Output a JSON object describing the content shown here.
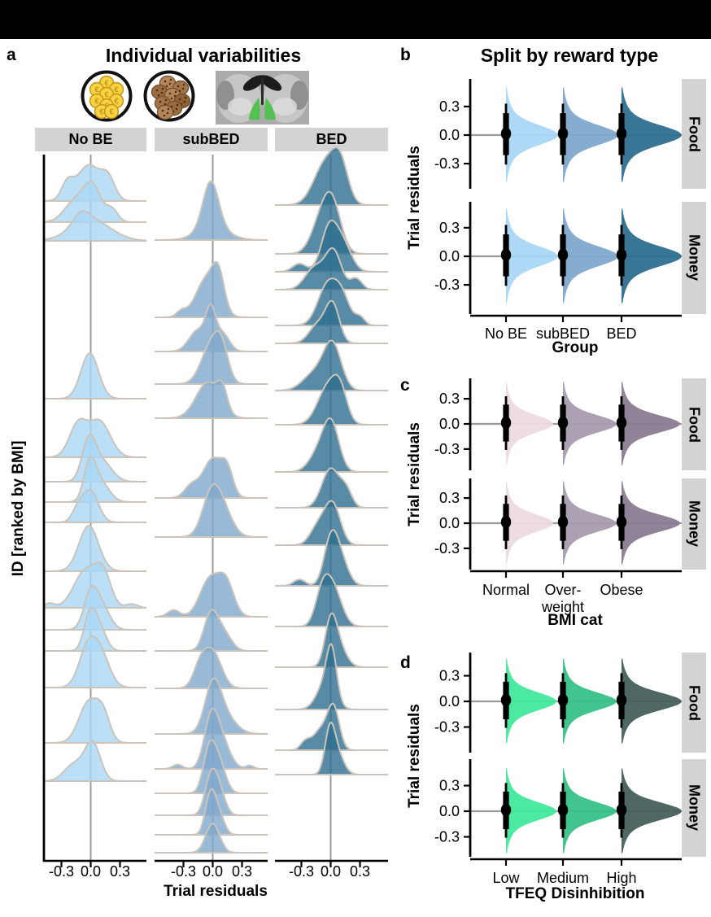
{
  "figure": {
    "panel_letters": {
      "a": "a",
      "b": "b",
      "c": "c",
      "d": "d"
    },
    "titles": {
      "a": "Individual variabilities",
      "b": "Split by reward type"
    },
    "axis": {
      "a_x": "Trial residuals",
      "a_y": "ID [ranked by BMI]",
      "b_x": "Group",
      "c_x": "BMI cat",
      "d_x": "TFEQ Disinhibition",
      "bcd_y": "Trial residuals"
    },
    "facet_strips": {
      "a": [
        "No BE",
        "subBED",
        "BED"
      ],
      "bcd": [
        "Food",
        "Money"
      ]
    },
    "icons": [
      {
        "name": "money-reward-icon",
        "desc": "euro coins in circle"
      },
      {
        "name": "food-reward-icon",
        "desc": "cookies in circle"
      },
      {
        "name": "brain-reward-region-icon",
        "desc": "coronal brain slice with green ventral striatum"
      }
    ]
  },
  "chart_data": [
    {
      "id": "a",
      "type": "ridgeline",
      "title": "Individual variabilities",
      "xlabel": "Trial residuals",
      "ylabel": "ID [ranked by BMI]",
      "facets": [
        "No BE",
        "subBED",
        "BED"
      ],
      "x_ticks": [
        "-0.3",
        "0.0",
        "0.3"
      ],
      "x_tick_values": [
        -0.3,
        0.0,
        0.3
      ],
      "xlim": [
        -0.55,
        0.55
      ],
      "colors": {
        "No BE": "#A9D7F5",
        "subBED": "#7FA9CC",
        "BED": "#2E6E8E"
      },
      "outline": "#CCC4BB",
      "zero_line_color": "#9B9B9B",
      "ridges": {
        "No BE": [
          [
            247,
            44,
            [
              [
                -0.02,
                0.12,
                1
              ],
              [
                0.18,
                0.07,
                0.55
              ],
              [
                -0.24,
                0.06,
                0.45
              ]
            ]
          ],
          [
            273,
            42,
            [
              [
                0.02,
                0.09,
                1
              ],
              [
                -0.16,
                0.11,
                0.6
              ],
              [
                0.22,
                0.06,
                0.35
              ]
            ]
          ],
          [
            296,
            26,
            [
              [
                0,
                0.2,
                1
              ],
              [
                -0.1,
                0.08,
                0.5
              ]
            ]
          ],
          [
            490,
            56,
            [
              [
                -0.01,
                0.09,
                1
              ]
            ]
          ],
          [
            562,
            44,
            [
              [
                -0.13,
                0.09,
                0.9
              ],
              [
                0.09,
                0.11,
                1
              ]
            ]
          ],
          [
            592,
            48,
            [
              [
                -0.02,
                0.07,
                1
              ],
              [
                0.12,
                0.1,
                0.5
              ]
            ]
          ],
          [
            617,
            44,
            [
              [
                -0.01,
                0.06,
                1
              ],
              [
                0.1,
                0.09,
                0.55
              ]
            ]
          ],
          [
            642,
            38,
            [
              [
                0,
                0.08,
                1
              ],
              [
                -0.13,
                0.06,
                0.4
              ]
            ]
          ],
          [
            702,
            56,
            [
              [
                -0.02,
                0.1,
                1
              ]
            ]
          ],
          [
            747,
            46,
            [
              [
                -0.05,
                0.12,
                1
              ],
              [
                0.13,
                0.08,
                0.8
              ],
              [
                -0.42,
                0.05,
                0.12
              ],
              [
                0.42,
                0.06,
                0.1
              ]
            ]
          ],
          [
            774,
            44,
            [
              [
                0,
                0.07,
                1
              ],
              [
                0.12,
                0.08,
                0.6
              ]
            ]
          ],
          [
            800,
            42,
            [
              [
                -0.01,
                0.06,
                1
              ],
              [
                0.09,
                0.07,
                0.65
              ]
            ]
          ],
          [
            845,
            48,
            [
              [
                -0.03,
                0.09,
                1
              ],
              [
                0.11,
                0.09,
                0.75
              ]
            ]
          ],
          [
            913,
            50,
            [
              [
                -0.02,
                0.1,
                1
              ],
              [
                0.13,
                0.07,
                0.6
              ]
            ]
          ],
          [
            960,
            46,
            [
              [
                0.02,
                0.08,
                1
              ],
              [
                -0.17,
                0.1,
                0.45
              ]
            ]
          ]
        ],
        "subBED": [
          [
            295,
            58,
            [
              [
                -0.02,
                0.08,
                1
              ],
              [
                0,
                0.16,
                0.25
              ]
            ]
          ],
          [
            390,
            48,
            [
              [
                -0.06,
                0.11,
                1
              ],
              [
                0.06,
                0.06,
                0.8
              ],
              [
                -0.32,
                0.05,
                0.15
              ]
            ]
          ],
          [
            432,
            44,
            [
              [
                -0.02,
                0.05,
                1
              ],
              [
                -0.15,
                0.09,
                0.6
              ],
              [
                0.1,
                0.07,
                0.5
              ]
            ]
          ],
          [
            472,
            46,
            [
              [
                -0.02,
                0.1,
                1
              ],
              [
                0.09,
                0.07,
                0.75
              ]
            ]
          ],
          [
            514,
            44,
            [
              [
                -0.05,
                0.12,
                1
              ],
              [
                0.1,
                0.05,
                0.55
              ]
            ]
          ],
          [
            612,
            48,
            [
              [
                0,
                0.1,
                1
              ],
              [
                0.15,
                0.06,
                0.6
              ],
              [
                -0.22,
                0.07,
                0.3
              ]
            ]
          ],
          [
            660,
            46,
            [
              [
                -0.02,
                0.09,
                1
              ],
              [
                0.1,
                0.1,
                0.7
              ]
            ]
          ],
          [
            758,
            46,
            [
              [
                -0.03,
                0.1,
                1
              ],
              [
                0.14,
                0.08,
                0.85
              ],
              [
                -0.4,
                0.06,
                0.18
              ]
            ]
          ],
          [
            800,
            44,
            [
              [
                -0.02,
                0.07,
                1
              ],
              [
                0.11,
                0.08,
                0.5
              ]
            ]
          ],
          [
            846,
            44,
            [
              [
                0,
                0.09,
                1
              ],
              [
                -0.13,
                0.07,
                0.55
              ]
            ]
          ],
          [
            902,
            50,
            [
              [
                0,
                0.08,
                1
              ],
              [
                0.1,
                0.12,
                0.5
              ]
            ]
          ],
          [
            945,
            52,
            [
              [
                -0.02,
                0.07,
                1
              ],
              [
                0.08,
                0.09,
                0.7
              ],
              [
                -0.36,
                0.05,
                0.1
              ],
              [
                0.38,
                0.04,
                0.08
              ]
            ]
          ],
          [
            975,
            48,
            [
              [
                -0.04,
                0.06,
                1
              ],
              [
                0.06,
                0.07,
                0.8
              ]
            ]
          ],
          [
            1002,
            46,
            [
              [
                -0.02,
                0.06,
                1
              ],
              [
                0.07,
                0.06,
                0.6
              ]
            ]
          ],
          [
            1026,
            42,
            [
              [
                -0.03,
                0.05,
                1
              ],
              [
                0.05,
                0.06,
                0.7
              ]
            ]
          ],
          [
            1048,
            36,
            [
              [
                0,
                0.07,
                1
              ]
            ]
          ]
        ],
        "BED": [
          [
            252,
            52,
            [
              [
                -0.05,
                0.12,
                1
              ],
              [
                0.1,
                0.08,
                0.8
              ]
            ]
          ],
          [
            312,
            54,
            [
              [
                0.02,
                0.09,
                1
              ],
              [
                -0.1,
                0.1,
                0.7
              ]
            ]
          ],
          [
            334,
            50,
            [
              [
                -0.02,
                0.08,
                1
              ],
              [
                0.12,
                0.09,
                0.7
              ],
              [
                -0.32,
                0.07,
                0.2
              ]
            ]
          ],
          [
            356,
            46,
            [
              [
                0.03,
                0.08,
                1
              ],
              [
                -0.16,
                0.1,
                0.6
              ],
              [
                0.26,
                0.06,
                0.3
              ]
            ]
          ],
          [
            400,
            50,
            [
              [
                -0.03,
                0.1,
                1
              ],
              [
                0.12,
                0.08,
                0.6
              ],
              [
                0.3,
                0.05,
                0.2
              ]
            ]
          ],
          [
            422,
            46,
            [
              [
                0.02,
                0.07,
                1
              ],
              [
                -0.13,
                0.09,
                0.5
              ]
            ]
          ],
          [
            480,
            54,
            [
              [
                0.02,
                0.09,
                1
              ],
              [
                -0.16,
                0.12,
                0.4
              ]
            ]
          ],
          [
            522,
            48,
            [
              [
                -0.02,
                0.11,
                1
              ],
              [
                0.1,
                0.07,
                0.6
              ]
            ]
          ],
          [
            580,
            52,
            [
              [
                0.01,
                0.08,
                1
              ],
              [
                -0.11,
                0.1,
                0.5
              ]
            ]
          ],
          [
            624,
            48,
            [
              [
                0,
                0.09,
                1
              ],
              [
                0.16,
                0.06,
                0.4
              ]
            ]
          ],
          [
            670,
            50,
            [
              [
                0.02,
                0.08,
                1
              ],
              [
                -0.13,
                0.08,
                0.45
              ]
            ]
          ],
          [
            720,
            52,
            [
              [
                0,
                0.07,
                1
              ],
              [
                0.1,
                0.08,
                0.6
              ],
              [
                -0.32,
                0.06,
                0.15
              ]
            ]
          ],
          [
            770,
            48,
            [
              [
                0.02,
                0.09,
                1
              ],
              [
                -0.09,
                0.07,
                0.7
              ]
            ]
          ],
          [
            820,
            50,
            [
              [
                0,
                0.06,
                1
              ],
              [
                0.08,
                0.08,
                0.5
              ]
            ]
          ],
          [
            872,
            54,
            [
              [
                0.01,
                0.05,
                1
              ],
              [
                -0.05,
                0.09,
                0.6
              ]
            ]
          ],
          [
            922,
            50,
            [
              [
                0.03,
                0.06,
                1
              ],
              [
                -0.1,
                0.08,
                0.5
              ],
              [
                -0.26,
                0.05,
                0.2
              ]
            ]
          ],
          [
            952,
            46,
            [
              [
                -0.01,
                0.05,
                1
              ],
              [
                0.06,
                0.07,
                0.6
              ]
            ]
          ]
        ]
      }
    },
    {
      "id": "b",
      "type": "half-violin",
      "title": "Split by reward type",
      "xlabel": "Group",
      "ylabel": "Trial residuals",
      "facets": [
        "Food",
        "Money"
      ],
      "categories": [
        "No BE",
        "subBED",
        "BED"
      ],
      "colors": [
        "#A9D7F5",
        "#7FA9CC",
        "#2E6E8E"
      ],
      "widths": [
        64,
        68,
        74
      ],
      "y_ticks": [
        "0.3",
        "0.0",
        "-0.3"
      ],
      "y_tick_values": [
        0.3,
        0.0,
        -0.3
      ],
      "ylim": [
        -0.5,
        0.5
      ],
      "stats": {
        "median": 0.015,
        "q1": -0.21,
        "q3": 0.23,
        "lo": -0.31,
        "hi": 0.33
      },
      "density": {
        "sigmas": [
          0.095,
          0.21
        ],
        "weights": [
          0.72,
          0.28
        ]
      },
      "zero_line_color": "#9B9B9B"
    },
    {
      "id": "c",
      "type": "half-violin",
      "title": "",
      "xlabel": "BMI cat",
      "ylabel": "Trial residuals",
      "facets": [
        "Food",
        "Money"
      ],
      "categories": [
        "Normal",
        "Over-\nweight",
        "Obese"
      ],
      "colors": [
        "#EDDAE2",
        "#A89CAE",
        "#8A7C91"
      ],
      "widths": [
        58,
        66,
        72
      ],
      "y_ticks": [
        "0.3",
        "0.0",
        "-0.3"
      ],
      "y_tick_values": [
        0.3,
        0.0,
        -0.3
      ],
      "ylim": [
        -0.5,
        0.5
      ],
      "stats": {
        "median": 0.015,
        "q1": -0.21,
        "q3": 0.23,
        "lo": -0.31,
        "hi": 0.33
      },
      "density": {
        "sigmas": [
          0.095,
          0.21
        ],
        "weights": [
          0.72,
          0.28
        ]
      },
      "zero_line_color": "#9B9B9B"
    },
    {
      "id": "d",
      "type": "half-violin",
      "title": "",
      "xlabel": "TFEQ Disinhibition",
      "ylabel": "Trial residuals",
      "facets": [
        "Food",
        "Money"
      ],
      "categories": [
        "Low",
        "Medium",
        "High"
      ],
      "colors": [
        "#41E99B",
        "#37C187",
        "#47605C"
      ],
      "widths": [
        62,
        66,
        74
      ],
      "y_ticks": [
        "0.3",
        "0.0",
        "-0.3"
      ],
      "y_tick_values": [
        0.3,
        0.0,
        -0.3
      ],
      "ylim": [
        -0.5,
        0.5
      ],
      "stats": {
        "median": 0.015,
        "q1": -0.21,
        "q3": 0.23,
        "lo": -0.31,
        "hi": 0.33
      },
      "density": {
        "sigmas": [
          0.095,
          0.21
        ],
        "weights": [
          0.72,
          0.28
        ]
      },
      "zero_line_color": "#9B9B9B"
    }
  ]
}
